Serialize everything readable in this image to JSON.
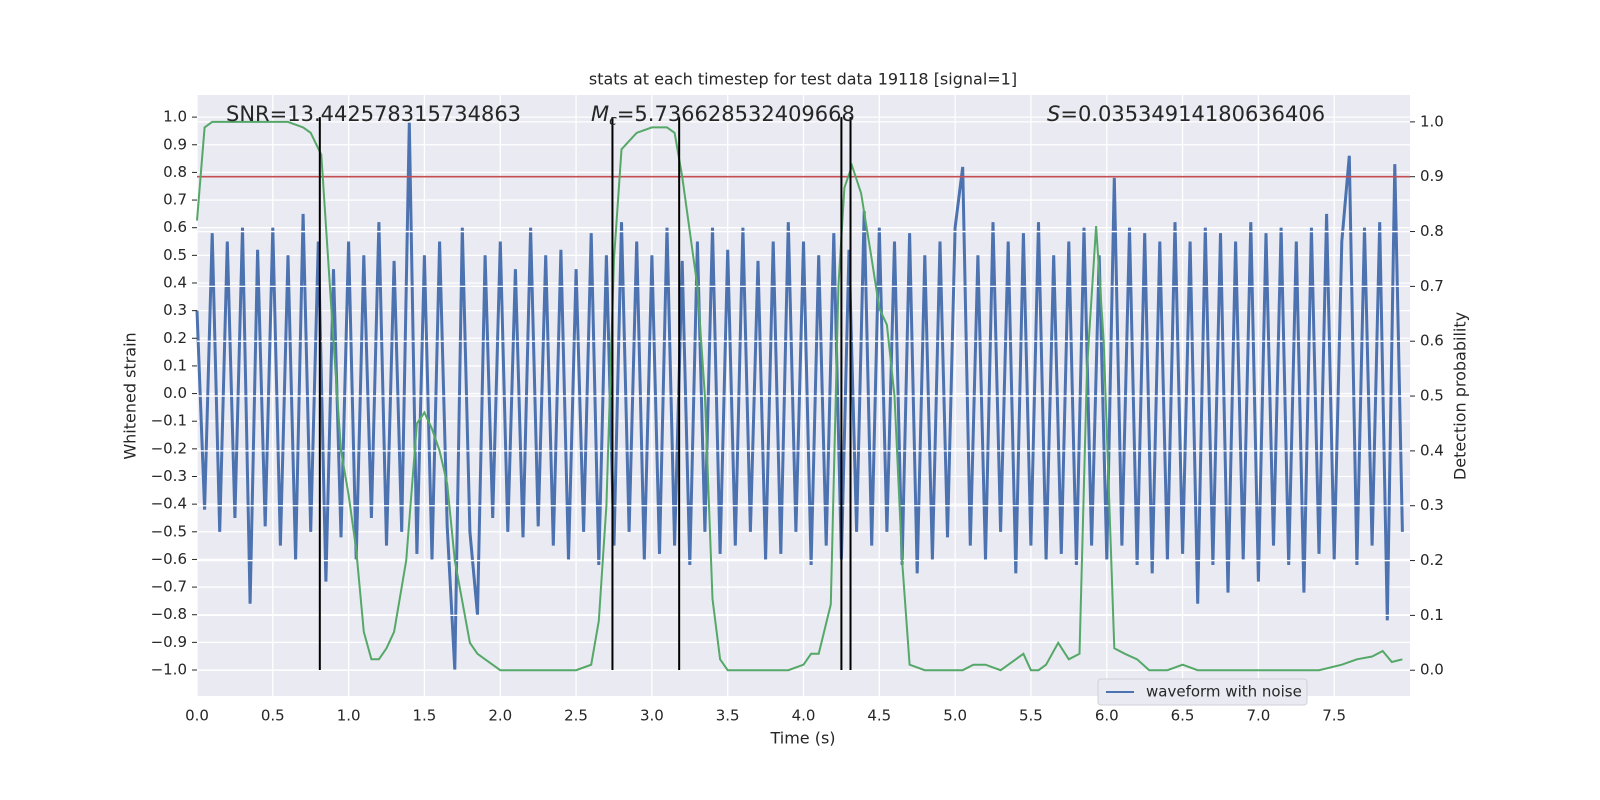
{
  "chart_data": {
    "type": "line",
    "title": "stats at each timestep for test data 19118 [signal=1]",
    "x_label": "Time (s)",
    "y_label": "Whitened strain",
    "y2_label": "Detection probability",
    "annotations": [
      {
        "text": "SNR=13.442578315734863"
      },
      {
        "symbol": "M",
        "subscript": "c",
        "text": "=5.736628532409668"
      },
      {
        "symbol": "S",
        "text": "=0.03534914180636406"
      }
    ],
    "xlim": [
      0,
      8.0
    ],
    "ylim": [
      -1.094,
      1.08
    ],
    "y2lim": [
      -0.047,
      1.049
    ],
    "grid": true,
    "legend": "lower right",
    "xticks": [
      {
        "value": 0,
        "label": "0.0"
      },
      {
        "value": 0.5,
        "label": "0.5"
      },
      {
        "value": 1,
        "label": "1.0"
      },
      {
        "value": 1.5,
        "label": "1.5"
      },
      {
        "value": 2,
        "label": "2.0"
      },
      {
        "value": 2.5,
        "label": "2.5"
      },
      {
        "value": 3,
        "label": "3.0"
      },
      {
        "value": 3.5,
        "label": "3.5"
      },
      {
        "value": 4,
        "label": "4.0"
      },
      {
        "value": 4.5,
        "label": "4.5"
      },
      {
        "value": 5,
        "label": "5.0"
      },
      {
        "value": 5.5,
        "label": "5.5"
      },
      {
        "value": 6,
        "label": "6.0"
      },
      {
        "value": 6.5,
        "label": "6.5"
      },
      {
        "value": 7,
        "label": "7.0"
      },
      {
        "value": 7.5,
        "label": "7.5"
      }
    ],
    "yticks": [
      {
        "value": -1,
        "label": "−1.0"
      },
      {
        "value": -0.9,
        "label": "−0.9"
      },
      {
        "value": -0.8,
        "label": "−0.8"
      },
      {
        "value": -0.7,
        "label": "−0.7"
      },
      {
        "value": -0.6,
        "label": "−0.6"
      },
      {
        "value": -0.5,
        "label": "−0.5"
      },
      {
        "value": -0.4,
        "label": "−0.4"
      },
      {
        "value": -0.3,
        "label": "−0.3"
      },
      {
        "value": -0.2,
        "label": "−0.2"
      },
      {
        "value": -0.1,
        "label": "−0.1"
      },
      {
        "value": 0,
        "label": "0.0"
      },
      {
        "value": 0.1,
        "label": "0.1"
      },
      {
        "value": 0.2,
        "label": "0.2"
      },
      {
        "value": 0.3,
        "label": "0.3"
      },
      {
        "value": 0.4,
        "label": "0.4"
      },
      {
        "value": 0.5,
        "label": "0.5"
      },
      {
        "value": 0.6,
        "label": "0.6"
      },
      {
        "value": 0.7,
        "label": "0.7"
      },
      {
        "value": 0.8,
        "label": "0.8"
      },
      {
        "value": 0.9,
        "label": "0.9"
      },
      {
        "value": 1,
        "label": "1.0"
      }
    ],
    "y2ticks": [
      {
        "value": 0,
        "label": "0.0"
      },
      {
        "value": 0.1,
        "label": "0.1"
      },
      {
        "value": 0.2,
        "label": "0.2"
      },
      {
        "value": 0.3,
        "label": "0.3"
      },
      {
        "value": 0.4,
        "label": "0.4"
      },
      {
        "value": 0.5,
        "label": "0.5"
      },
      {
        "value": 0.6,
        "label": "0.6"
      },
      {
        "value": 0.7,
        "label": "0.7"
      },
      {
        "value": 0.8,
        "label": "0.8"
      },
      {
        "value": 0.9,
        "label": "0.9"
      },
      {
        "value": 1,
        "label": "1.0"
      }
    ],
    "hline": {
      "value": 0.9,
      "axis": "y2",
      "color": "#c44e52"
    },
    "vlines": {
      "x": [
        0.81,
        2.74,
        3.18,
        4.25,
        4.31
      ],
      "color": "#000000"
    },
    "series": [
      {
        "name": "waveform with noise",
        "color": "#4c72b0",
        "x": [
          0,
          0.05,
          0.1,
          0.15,
          0.2,
          0.25,
          0.3,
          0.35,
          0.4,
          0.45,
          0.5,
          0.55,
          0.6,
          0.65,
          0.7,
          0.75,
          0.8,
          0.85,
          0.9,
          0.95,
          1,
          1.05,
          1.1,
          1.15,
          1.2,
          1.25,
          1.3,
          1.35,
          1.4,
          1.45,
          1.5,
          1.55,
          1.6,
          1.65,
          1.7,
          1.75,
          1.8,
          1.85,
          1.9,
          1.95,
          2,
          2.05,
          2.1,
          2.15,
          2.2,
          2.25,
          2.3,
          2.35,
          2.4,
          2.45,
          2.5,
          2.55,
          2.6,
          2.65,
          2.7,
          2.75,
          2.8,
          2.85,
          2.9,
          2.95,
          3,
          3.05,
          3.1,
          3.15,
          3.2,
          3.25,
          3.3,
          3.35,
          3.4,
          3.45,
          3.5,
          3.55,
          3.6,
          3.65,
          3.7,
          3.75,
          3.8,
          3.85,
          3.9,
          3.95,
          4,
          4.05,
          4.1,
          4.15,
          4.2,
          4.25,
          4.3,
          4.35,
          4.4,
          4.45,
          4.5,
          4.55,
          4.6,
          4.65,
          4.7,
          4.75,
          4.8,
          4.85,
          4.9,
          4.95,
          5,
          5.05,
          5.1,
          5.15,
          5.2,
          5.25,
          5.3,
          5.35,
          5.4,
          5.45,
          5.5,
          5.55,
          5.6,
          5.65,
          5.7,
          5.75,
          5.8,
          5.85,
          5.9,
          5.95,
          6,
          6.05,
          6.1,
          6.15,
          6.2,
          6.25,
          6.3,
          6.35,
          6.4,
          6.45,
          6.5,
          6.55,
          6.6,
          6.65,
          6.7,
          6.75,
          6.8,
          6.85,
          6.9,
          6.95,
          7,
          7.05,
          7.1,
          7.15,
          7.2,
          7.25,
          7.3,
          7.35,
          7.4,
          7.45,
          7.5,
          7.55,
          7.6,
          7.65,
          7.7,
          7.75,
          7.8,
          7.85,
          7.9,
          7.95
        ],
        "values": [
          0.3,
          -0.42,
          0.58,
          -0.5,
          0.55,
          -0.45,
          0.6,
          -0.76,
          0.52,
          -0.48,
          0.6,
          -0.55,
          0.5,
          -0.6,
          0.65,
          -0.5,
          0.55,
          -0.68,
          0.45,
          -0.52,
          0.55,
          -0.6,
          0.5,
          -0.45,
          0.62,
          -0.55,
          0.48,
          -0.5,
          0.98,
          -0.58,
          0.5,
          -0.6,
          0.55,
          -0.48,
          -1.0,
          0.6,
          -0.5,
          -0.8,
          0.5,
          -0.45,
          0.55,
          -0.5,
          0.45,
          -0.52,
          0.6,
          -0.48,
          0.5,
          -0.55,
          0.52,
          -0.6,
          0.45,
          -0.5,
          0.58,
          -0.62,
          0.5,
          -0.55,
          0.62,
          -0.5,
          0.55,
          -0.6,
          0.5,
          -0.58,
          0.6,
          -0.55,
          0.48,
          -0.62,
          0.55,
          -0.5,
          0.6,
          -0.58,
          0.52,
          -0.55,
          0.6,
          -0.5,
          0.48,
          -0.6,
          0.55,
          -0.58,
          0.62,
          -0.5,
          0.55,
          -0.62,
          0.5,
          -0.55,
          0.58,
          -0.6,
          0.52,
          -0.5,
          0.66,
          -0.55,
          0.6,
          -0.5,
          0.55,
          -0.62,
          0.58,
          -0.65,
          0.5,
          -0.6,
          0.55,
          -0.52,
          0.6,
          0.82,
          -0.55,
          0.5,
          -0.6,
          0.62,
          -0.5,
          0.55,
          -0.65,
          0.58,
          -0.55,
          0.62,
          -0.6,
          0.5,
          -0.58,
          0.55,
          -0.62,
          0.6,
          -0.55,
          0.5,
          -0.6,
          0.78,
          -0.55,
          0.6,
          -0.62,
          0.58,
          -0.65,
          0.55,
          -0.6,
          0.62,
          -0.58,
          0.55,
          -0.76,
          0.6,
          -0.62,
          0.58,
          -0.72,
          0.55,
          -0.6,
          0.62,
          -0.68,
          0.58,
          -0.55,
          0.6,
          -0.62,
          0.55,
          -0.72,
          0.6,
          -0.58,
          0.65,
          -0.6,
          0.55,
          0.86,
          -0.62,
          0.6,
          -0.55,
          0.62,
          -0.82,
          0.83,
          -0.5
        ]
      },
      {
        "color": "#55a868",
        "axis": "y2",
        "x": [
          0,
          0.05,
          0.1,
          0.2,
          0.3,
          0.4,
          0.5,
          0.6,
          0.7,
          0.75,
          0.82,
          0.9,
          0.95,
          1,
          1.05,
          1.1,
          1.15,
          1.2,
          1.25,
          1.3,
          1.38,
          1.45,
          1.5,
          1.55,
          1.6,
          1.65,
          1.7,
          1.8,
          1.85,
          1.9,
          2,
          2.1,
          2.3,
          2.5,
          2.6,
          2.65,
          2.7,
          2.75,
          2.8,
          2.9,
          3,
          3.1,
          3.15,
          3.2,
          3.3,
          3.35,
          3.4,
          3.45,
          3.5,
          3.6,
          3.7,
          3.8,
          3.9,
          4,
          4.05,
          4.1,
          4.18,
          4.23,
          4.27,
          4.32,
          4.38,
          4.45,
          4.5,
          4.55,
          4.6,
          4.65,
          4.7,
          4.8,
          4.9,
          5,
          5.05,
          5.12,
          5.2,
          5.3,
          5.4,
          5.45,
          5.5,
          5.55,
          5.6,
          5.68,
          5.75,
          5.82,
          5.87,
          5.93,
          5.98,
          6.05,
          6.12,
          6.2,
          6.28,
          6.4,
          6.5,
          6.6,
          6.8,
          7,
          7.2,
          7.4,
          7.55,
          7.65,
          7.75,
          7.82,
          7.88,
          7.95
        ],
        "values": [
          0.82,
          0.99,
          1.0,
          1.0,
          1.0,
          1.0,
          1.0,
          1.0,
          0.99,
          0.98,
          0.94,
          0.6,
          0.4,
          0.32,
          0.22,
          0.07,
          0.02,
          0.02,
          0.04,
          0.07,
          0.2,
          0.45,
          0.47,
          0.44,
          0.4,
          0.34,
          0.2,
          0.05,
          0.03,
          0.02,
          0.0,
          0.0,
          0.0,
          0.0,
          0.01,
          0.09,
          0.3,
          0.75,
          0.95,
          0.98,
          0.99,
          0.99,
          0.98,
          0.9,
          0.7,
          0.5,
          0.13,
          0.02,
          0.0,
          0.0,
          0.0,
          0.0,
          0.0,
          0.01,
          0.03,
          0.03,
          0.12,
          0.7,
          0.88,
          0.92,
          0.87,
          0.75,
          0.66,
          0.63,
          0.5,
          0.2,
          0.01,
          0.0,
          0.0,
          0.0,
          0.0,
          0.01,
          0.01,
          0.0,
          0.02,
          0.03,
          0.0,
          0.0,
          0.01,
          0.05,
          0.02,
          0.03,
          0.55,
          0.81,
          0.6,
          0.04,
          0.03,
          0.02,
          0.0,
          0.0,
          0.01,
          0.0,
          0.0,
          0.0,
          0.0,
          0.0,
          0.01,
          0.02,
          0.025,
          0.035,
          0.015,
          0.02
        ]
      }
    ]
  }
}
